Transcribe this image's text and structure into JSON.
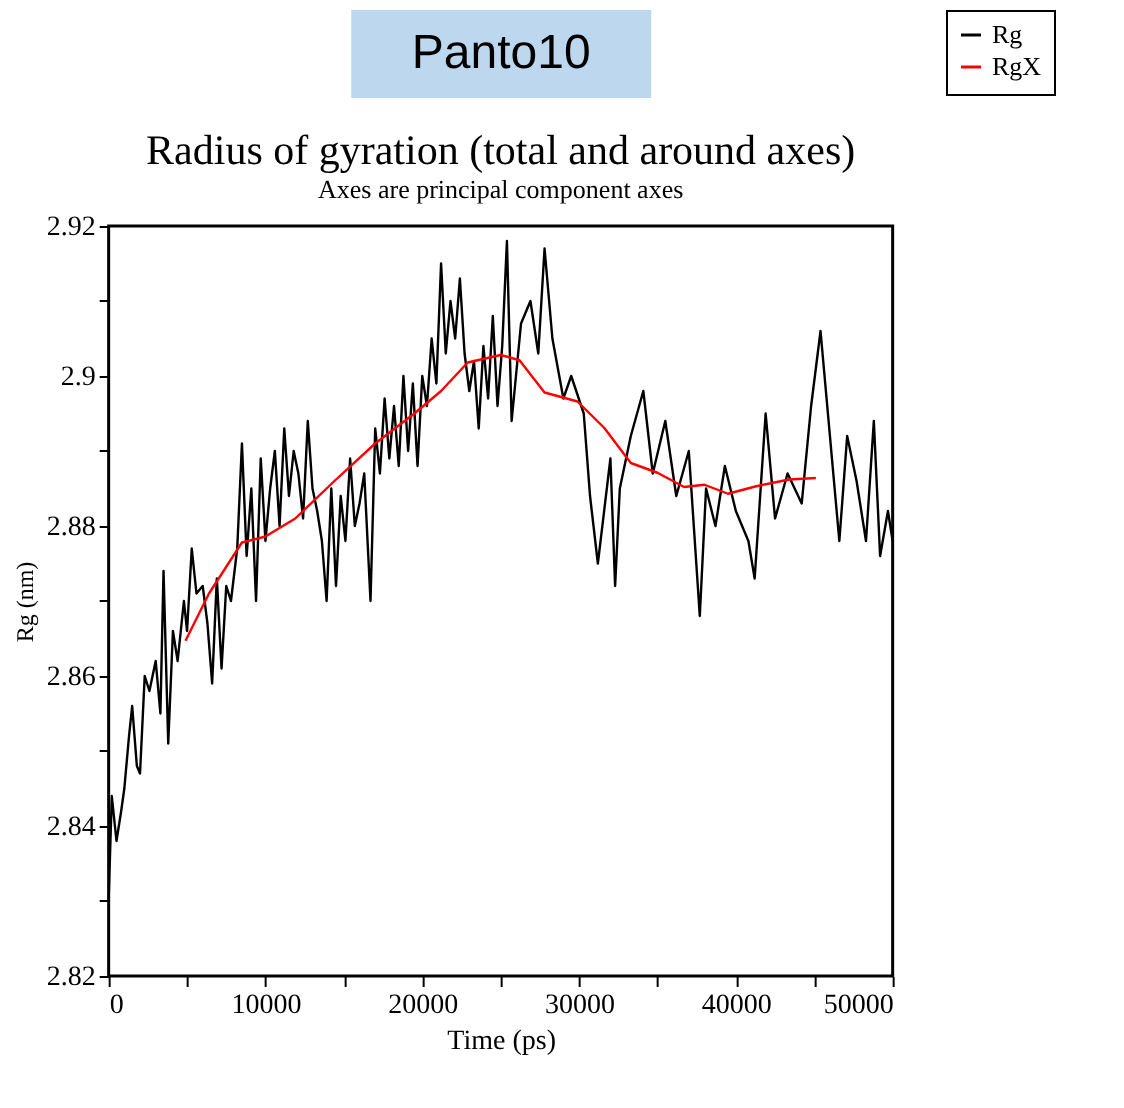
{
  "chart_data": {
    "type": "line",
    "title": "Radius of gyration (total and around axes)",
    "subtitle": "Axes are principal component axes",
    "xlabel": "Time (ps)",
    "ylabel": "Rg (nm)",
    "annotations": [
      "Panto10"
    ],
    "xlim": [
      0,
      50000
    ],
    "ylim": [
      2.82,
      2.92
    ],
    "xticks": [
      0,
      {
        "value": 5000,
        "label": null
      },
      10000,
      {
        "value": 15000,
        "label": null
      },
      20000,
      {
        "value": 25000,
        "label": null
      },
      30000,
      {
        "value": 35000,
        "label": null
      },
      40000,
      {
        "value": 45000,
        "label": null
      },
      50000
    ],
    "yticks": [
      2.82,
      {
        "value": 2.83,
        "label": null
      },
      2.84,
      {
        "value": 2.85,
        "label": null
      },
      2.86,
      {
        "value": 2.87,
        "label": null
      },
      2.88,
      {
        "value": 2.89,
        "label": null
      },
      {
        "value": 2.9,
        "label": "2.9"
      },
      {
        "value": 2.91,
        "label": null
      },
      2.92
    ],
    "grid": false,
    "legend": "top right",
    "marker": "none",
    "line_style": "solid",
    "series": [
      {
        "name": "Rg",
        "color": "#000000",
        "x": [
          0,
          200,
          500,
          800,
          1000,
          1300,
          1500,
          1800,
          2000,
          2300,
          2600,
          3000,
          3300,
          3500,
          3800,
          4100,
          4400,
          4800,
          5000,
          5300,
          5600,
          6000,
          6300,
          6600,
          6900,
          7200,
          7500,
          7800,
          8200,
          8500,
          8800,
          9100,
          9400,
          9700,
          10000,
          10300,
          10600,
          10900,
          11200,
          11500,
          11800,
          12100,
          12400,
          12700,
          13000,
          13300,
          13600,
          13900,
          14200,
          14500,
          14800,
          15100,
          15400,
          15700,
          16000,
          16300,
          16700,
          17000,
          17300,
          17600,
          17900,
          18200,
          18500,
          18800,
          19100,
          19400,
          19700,
          20000,
          20300,
          20600,
          20900,
          21200,
          21500,
          21800,
          22100,
          22400,
          22700,
          23000,
          23300,
          23600,
          23900,
          24200,
          24500,
          24800,
          25100,
          25400,
          25700,
          26300,
          26900,
          27400,
          27800,
          28300,
          29000,
          29500,
          30300,
          30700,
          31200,
          32000,
          32300,
          32600,
          33300,
          34100,
          34700,
          35500,
          36200,
          37000,
          37700,
          38100,
          38700,
          39300,
          40000,
          40800,
          41200,
          41900,
          42500,
          43300,
          44200,
          44800,
          45400,
          46000,
          46600,
          47100,
          47700,
          48300,
          48800,
          49200,
          49700,
          50000
        ],
        "values": [
          2.83,
          2.844,
          2.838,
          2.842,
          2.845,
          2.852,
          2.856,
          2.848,
          2.847,
          2.86,
          2.858,
          2.862,
          2.855,
          2.874,
          2.851,
          2.866,
          2.862,
          2.87,
          2.866,
          2.877,
          2.871,
          2.872,
          2.867,
          2.859,
          2.873,
          2.861,
          2.872,
          2.87,
          2.877,
          2.891,
          2.876,
          2.885,
          2.87,
          2.889,
          2.878,
          2.885,
          2.89,
          2.88,
          2.893,
          2.884,
          2.89,
          2.887,
          2.881,
          2.894,
          2.885,
          2.882,
          2.878,
          2.87,
          2.885,
          2.872,
          2.884,
          2.878,
          2.889,
          2.88,
          2.883,
          2.887,
          2.87,
          2.893,
          2.887,
          2.897,
          2.889,
          2.896,
          2.888,
          2.9,
          2.89,
          2.899,
          2.888,
          2.9,
          2.896,
          2.905,
          2.899,
          2.915,
          2.903,
          2.91,
          2.905,
          2.913,
          2.903,
          2.898,
          2.902,
          2.893,
          2.904,
          2.897,
          2.908,
          2.896,
          2.904,
          2.918,
          2.894,
          2.907,
          2.91,
          2.903,
          2.917,
          2.905,
          2.897,
          2.9,
          2.895,
          2.884,
          2.875,
          2.889,
          2.872,
          2.885,
          2.892,
          2.898,
          2.887,
          2.894,
          2.884,
          2.89,
          2.868,
          2.885,
          2.88,
          2.888,
          2.882,
          2.878,
          2.873,
          2.895,
          2.881,
          2.887,
          2.883,
          2.896,
          2.906,
          2.892,
          2.878,
          2.892,
          2.886,
          2.878,
          2.894,
          2.876,
          2.882,
          2.878
        ]
      },
      {
        "name": "RgX",
        "color": "#ff0000",
        "x": [
          4900,
          6400,
          8500,
          10000,
          11900,
          14400,
          17000,
          19500,
          21200,
          22900,
          25000,
          26200,
          27800,
          29900,
          31600,
          33300,
          35000,
          36700,
          38000,
          39500,
          41300,
          43400,
          45100
        ],
        "values": [
          2.8647,
          2.871,
          2.8778,
          2.8786,
          2.881,
          2.886,
          2.891,
          2.895,
          2.898,
          2.9018,
          2.9028,
          2.9021,
          2.8978,
          2.8966,
          2.8931,
          2.8884,
          2.8871,
          2.8852,
          2.8855,
          2.8843,
          2.8853,
          2.8862,
          2.8864
        ]
      }
    ]
  }
}
